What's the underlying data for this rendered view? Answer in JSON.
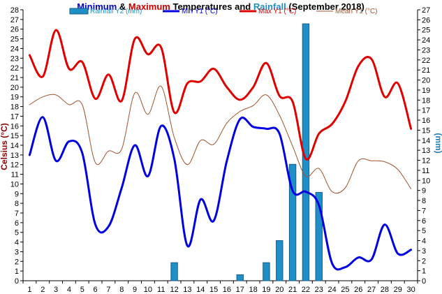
{
  "chart_data": {
    "type": "bar+line",
    "title": {
      "parts": [
        {
          "text": "Minimum",
          "color": "#0000cc"
        },
        {
          "text": " & ",
          "color": "#000000"
        },
        {
          "text": "Maximum",
          "color": "#cc0000"
        },
        {
          "text": " Temperatures and ",
          "color": "#000000"
        },
        {
          "text": "Rainfall",
          "color": "#1f8fc7"
        },
        {
          "text": " (September 2018)",
          "color": "#000000"
        }
      ]
    },
    "ylabel_left": "Celsius (°C)",
    "ylabel_right": "(mm)",
    "left_axis": {
      "min": 0,
      "max": 28,
      "step": 1,
      "color": "#8b0000"
    },
    "right_axis": {
      "min": 0,
      "max": 27,
      "step": 1,
      "color": "#1f7fb0"
    },
    "x": [
      1,
      2,
      3,
      4,
      5,
      6,
      7,
      8,
      9,
      10,
      11,
      12,
      13,
      14,
      15,
      16,
      17,
      18,
      19,
      20,
      21,
      22,
      23,
      24,
      25,
      26,
      27,
      28,
      29,
      30
    ],
    "rainfall": {
      "name": "Rainfall Y2 (mm)",
      "axis": "right",
      "color": "#1f8fc7",
      "values": [
        0,
        0,
        0,
        0,
        0,
        0,
        0,
        0,
        0,
        0,
        0,
        1.8,
        0,
        0,
        0,
        0,
        0.6,
        0,
        1.8,
        4.0,
        11.6,
        25.6,
        8.8,
        0,
        0,
        0,
        0,
        0,
        0,
        0
      ]
    },
    "series": [
      {
        "name": "Min Y1 (°C)",
        "axis": "left",
        "color": "#0000e0",
        "width": 3,
        "values": [
          13.0,
          16.9,
          12.4,
          14.4,
          13.2,
          5.8,
          5.6,
          9.6,
          14.0,
          10.8,
          16.0,
          12.6,
          3.6,
          8.4,
          6.2,
          12.4,
          16.7,
          15.9,
          15.7,
          15.2,
          9.3,
          9.2,
          7.8,
          1.8,
          1.4,
          2.4,
          2.2,
          5.8,
          2.8,
          3.2
        ]
      },
      {
        "name": "Max Y1 (°C)",
        "axis": "left",
        "color": "#e00000",
        "width": 3,
        "values": [
          23.3,
          21.1,
          25.9,
          21.9,
          22.6,
          18.8,
          21.3,
          18.6,
          25.0,
          23.4,
          24.1,
          17.4,
          20.4,
          20.6,
          21.9,
          20.0,
          18.7,
          20.0,
          22.5,
          19.1,
          18.5,
          12.6,
          15.2,
          16.2,
          18.5,
          22.2,
          22.9,
          19.0,
          20.4,
          15.7
        ]
      },
      {
        "name": "Mean Y1 (°C)",
        "axis": "left",
        "color": "#a0522d",
        "width": 1,
        "values": [
          18.2,
          19.0,
          19.2,
          18.2,
          18.2,
          12.2,
          13.4,
          13.6,
          19.4,
          17.2,
          20.1,
          14.8,
          12.0,
          14.5,
          14.1,
          16.3,
          17.5,
          18.1,
          19.2,
          17.1,
          13.9,
          10.8,
          11.6,
          9.2,
          9.6,
          12.4,
          12.4,
          12.3,
          11.5,
          9.5
        ]
      }
    ],
    "legend_order": [
      "Rainfall Y2 (mm)",
      "Min Y1 (°C)",
      "Max Y1 (°C)",
      "Mean Y1 (°C)"
    ],
    "legend_position": "top",
    "grid": false
  }
}
